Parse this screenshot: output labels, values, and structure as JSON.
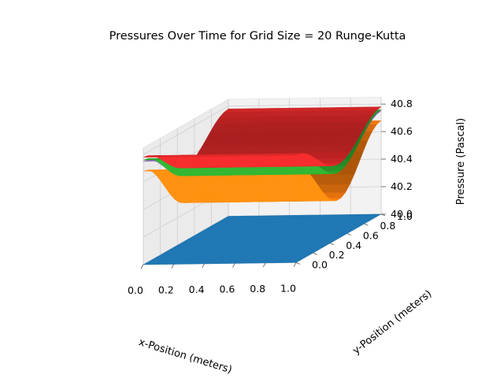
{
  "chart_data": {
    "type": "surface3d",
    "title": "Pressures Over Time for Grid Size = 20 Runge-Kutta",
    "xlabel": "x-Position (meters)",
    "ylabel": "y-Position (meters)",
    "zlabel": "Pressure (Pascal)",
    "x_ticks": [
      "0.0",
      "0.2",
      "0.4",
      "0.6",
      "0.8",
      "1.0"
    ],
    "y_ticks": [
      "0.0",
      "0.2",
      "0.4",
      "0.6",
      "0.8",
      "1.0"
    ],
    "z_ticks": [
      "40.0",
      "40.2",
      "40.4",
      "40.6",
      "40.8"
    ],
    "xlim": [
      0,
      1
    ],
    "ylim": [
      0,
      1
    ],
    "zlim": [
      40.0,
      40.85
    ],
    "grid": true,
    "colors": {
      "blue": "#1f77b4",
      "orange": "#ff7f0e",
      "green": "#2ca02c",
      "red": "#d62728",
      "purple": "#9467bd"
    },
    "series": [
      {
        "color": "#1f77b4",
        "base": 40.0,
        "amplitude": 0.0
      },
      {
        "color": "#ff7f0e",
        "base": 40.48,
        "amplitude": 0.2
      },
      {
        "color": "#9467bd",
        "base": 40.62,
        "amplitude": 0.13
      },
      {
        "color": "#2ca02c",
        "base": 40.62,
        "amplitude": 0.14
      },
      {
        "color": "#d62728",
        "base": 40.66,
        "amplitude": 0.12
      }
    ]
  }
}
